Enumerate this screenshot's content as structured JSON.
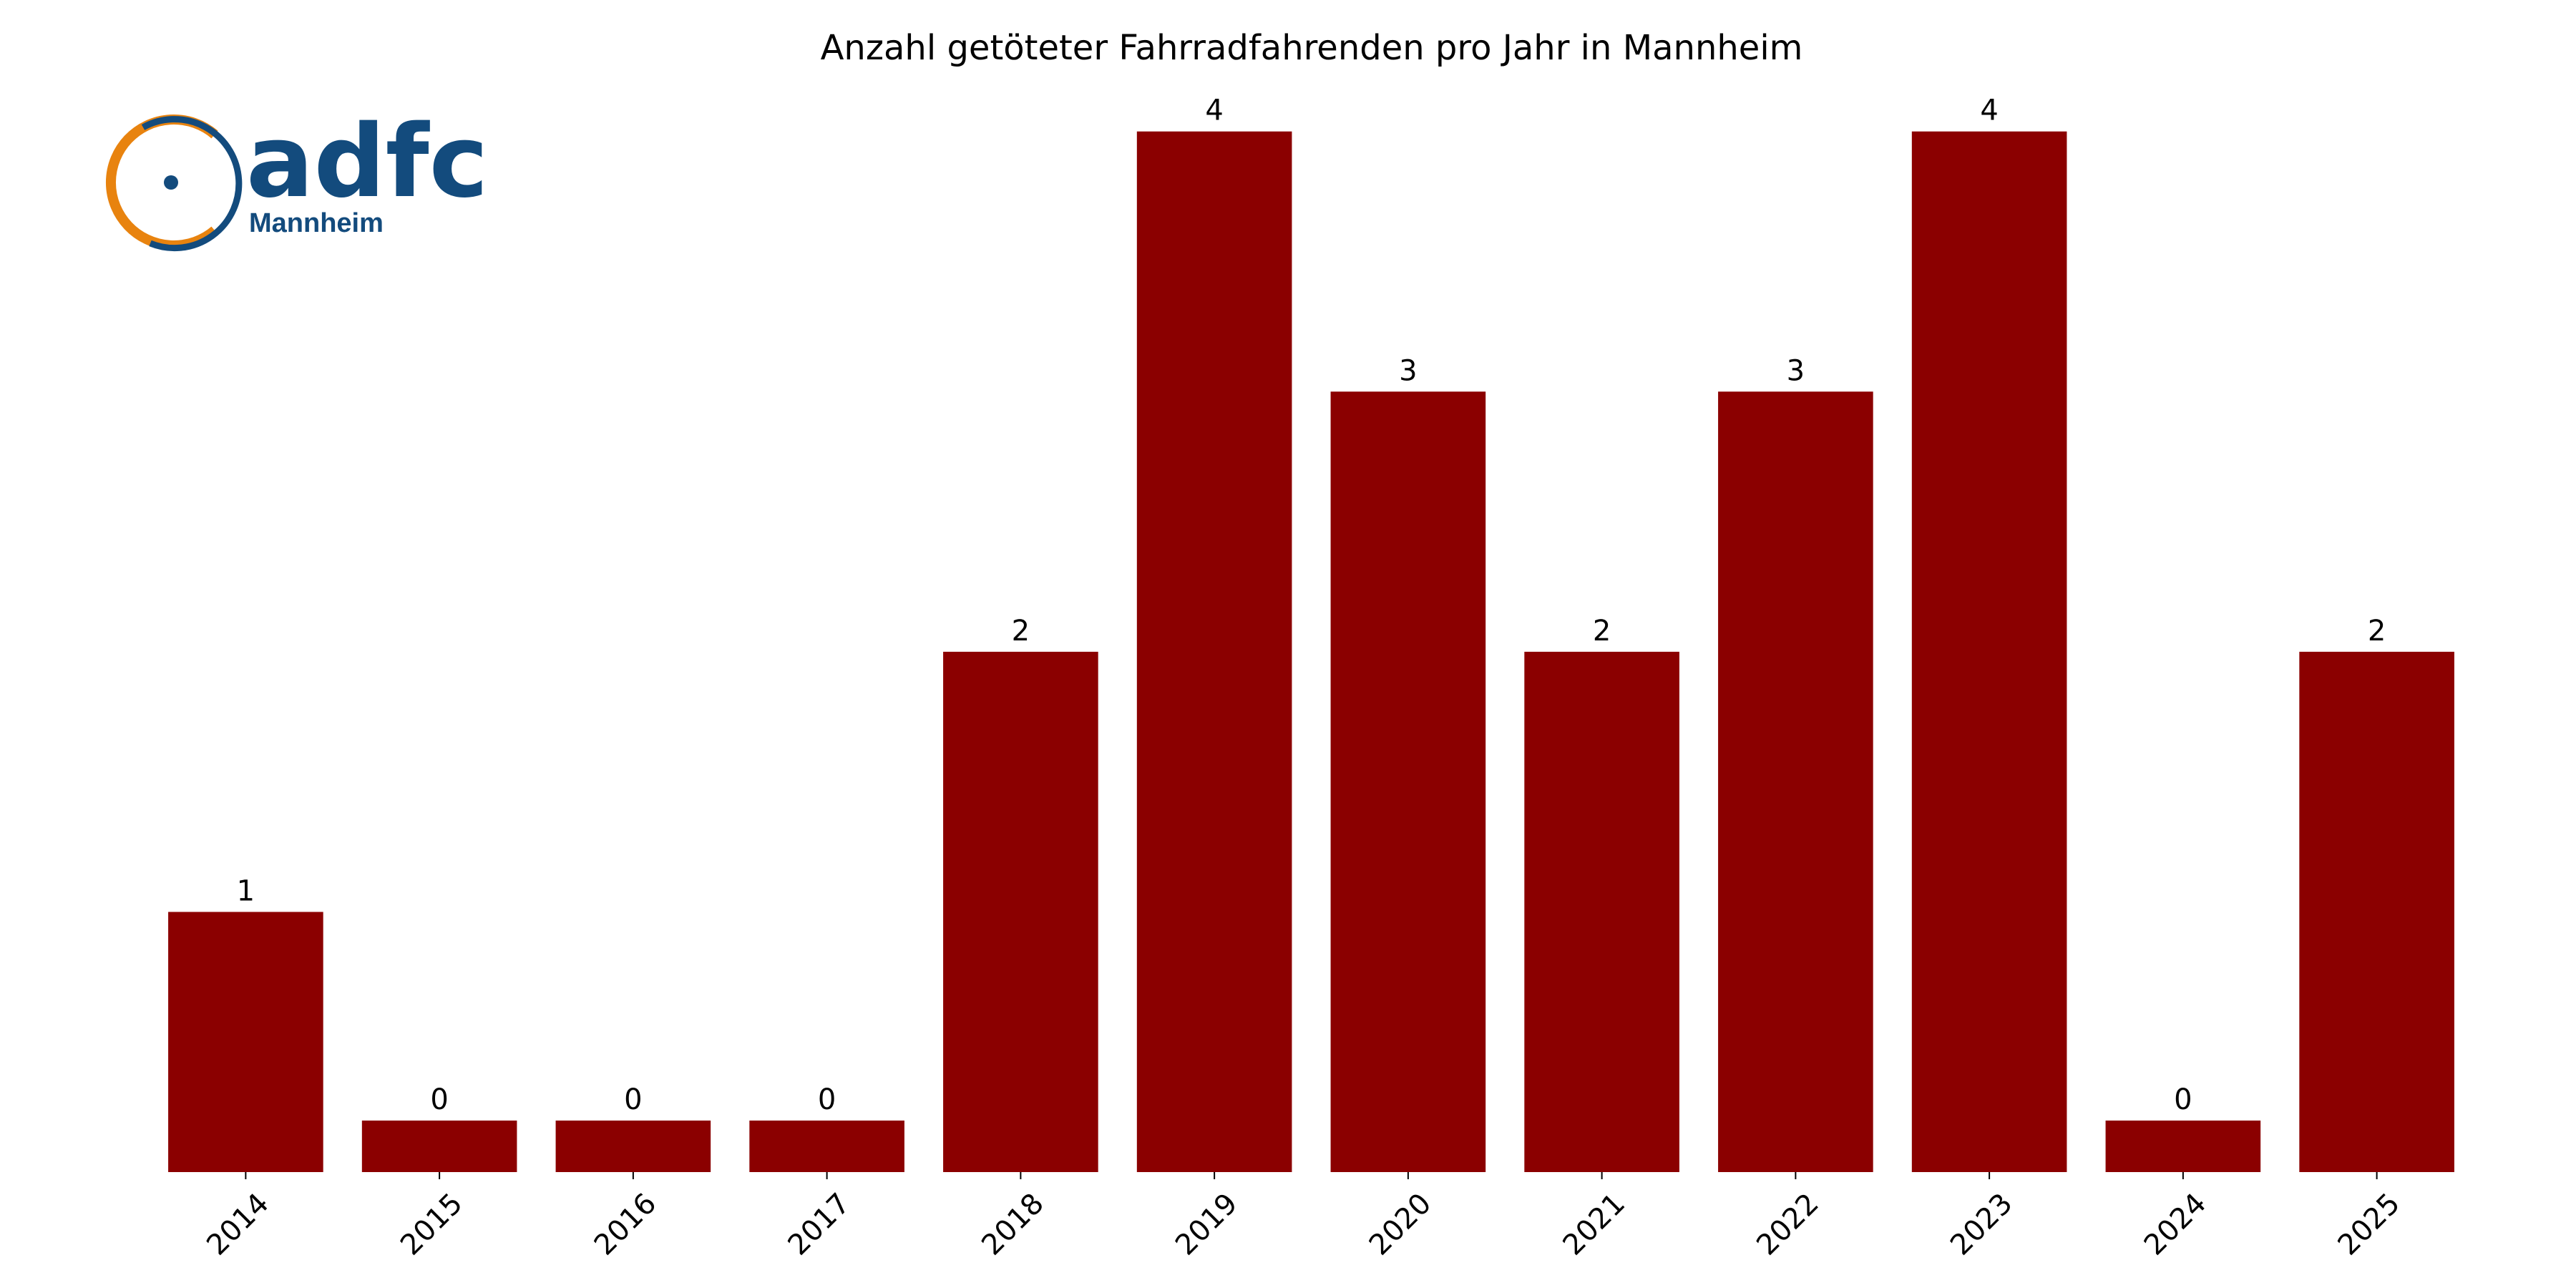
{
  "chart_data": {
    "type": "bar",
    "title": "Anzahl getöteter Fahrradfahrenden pro Jahr in Mannheim",
    "logo": {
      "text": "adfc",
      "subtext": "Mannheim"
    },
    "categories": [
      "2014",
      "2015",
      "2016",
      "2017",
      "2018",
      "2019",
      "2020",
      "2021",
      "2022",
      "2023",
      "2024",
      "2025"
    ],
    "values": [
      1,
      0,
      0,
      0,
      2,
      4,
      3,
      2,
      3,
      4,
      0,
      2
    ],
    "color": "#8b0000",
    "ylim": [
      0,
      4.2
    ]
  }
}
